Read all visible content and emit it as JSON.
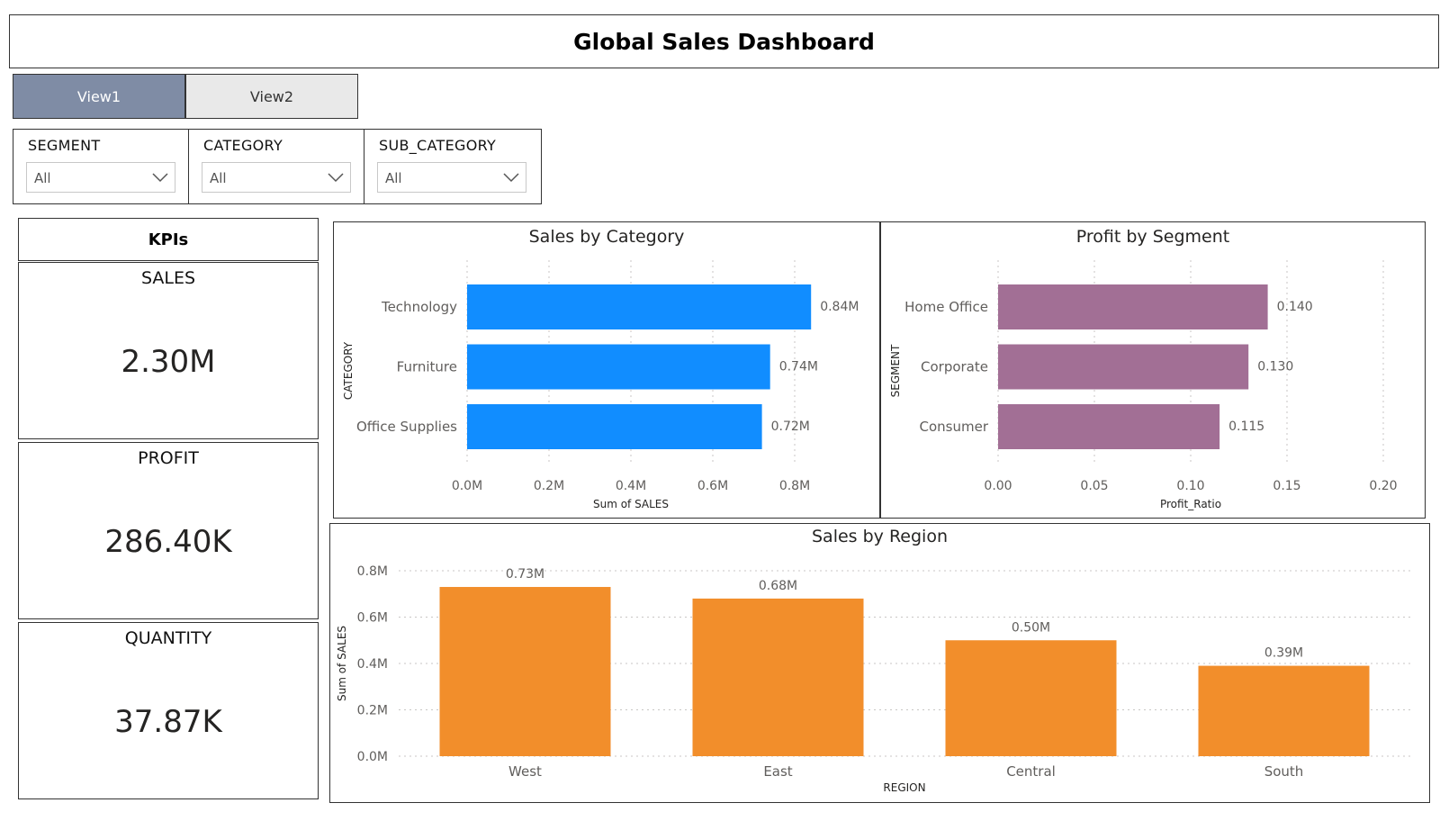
{
  "header": {
    "title": "Global Sales Dashboard"
  },
  "views": [
    {
      "label": "View1",
      "active": true
    },
    {
      "label": "View2",
      "active": false
    }
  ],
  "slicers": [
    {
      "label": "SEGMENT",
      "value": "All"
    },
    {
      "label": "CATEGORY",
      "value": "All"
    },
    {
      "label": "SUB_CATEGORY",
      "value": "All"
    }
  ],
  "kpis": {
    "title": "KPIs",
    "items": [
      {
        "label": "SALES",
        "value": "2.30M"
      },
      {
        "label": "PROFIT",
        "value": "286.40K"
      },
      {
        "label": "QUANTITY",
        "value": "37.87K"
      }
    ]
  },
  "colors": {
    "category": "#118dff",
    "segment": "#a26f95",
    "region": "#f28e2b",
    "view_active": "#7f8ca5",
    "view_inactive": "#e9e9e9"
  },
  "chart_data": [
    {
      "type": "bar",
      "orientation": "horizontal",
      "title": "Sales by Category",
      "xlabel": "Sum of SALES",
      "ylabel": "CATEGORY",
      "categories": [
        "Technology",
        "Furniture",
        "Office Supplies"
      ],
      "values": [
        0.84,
        0.74,
        0.72
      ],
      "value_labels": [
        "0.84M",
        "0.74M",
        "0.72M"
      ],
      "xlim": [
        0,
        0.8
      ],
      "xticks": [
        "0.0M",
        "0.2M",
        "0.4M",
        "0.6M",
        "0.8M"
      ],
      "grid": true
    },
    {
      "type": "bar",
      "orientation": "horizontal",
      "title": "Profit by Segment",
      "xlabel": "Profit_Ratio",
      "ylabel": "SEGMENT",
      "categories": [
        "Home Office",
        "Corporate",
        "Consumer"
      ],
      "values": [
        0.14,
        0.13,
        0.115
      ],
      "value_labels": [
        "0.140",
        "0.130",
        "0.115"
      ],
      "xlim": [
        0,
        0.2
      ],
      "xticks": [
        "0.00",
        "0.05",
        "0.10",
        "0.15",
        "0.20"
      ],
      "grid": true
    },
    {
      "type": "bar",
      "orientation": "vertical",
      "title": "Sales by Region",
      "xlabel": "REGION",
      "ylabel": "Sum of SALES",
      "categories": [
        "West",
        "East",
        "Central",
        "South"
      ],
      "values": [
        0.73,
        0.68,
        0.5,
        0.39
      ],
      "value_labels": [
        "0.73M",
        "0.68M",
        "0.50M",
        "0.39M"
      ],
      "ylim": [
        0,
        0.8
      ],
      "yticks": [
        "0.0M",
        "0.2M",
        "0.4M",
        "0.6M",
        "0.8M"
      ],
      "grid": true
    }
  ]
}
